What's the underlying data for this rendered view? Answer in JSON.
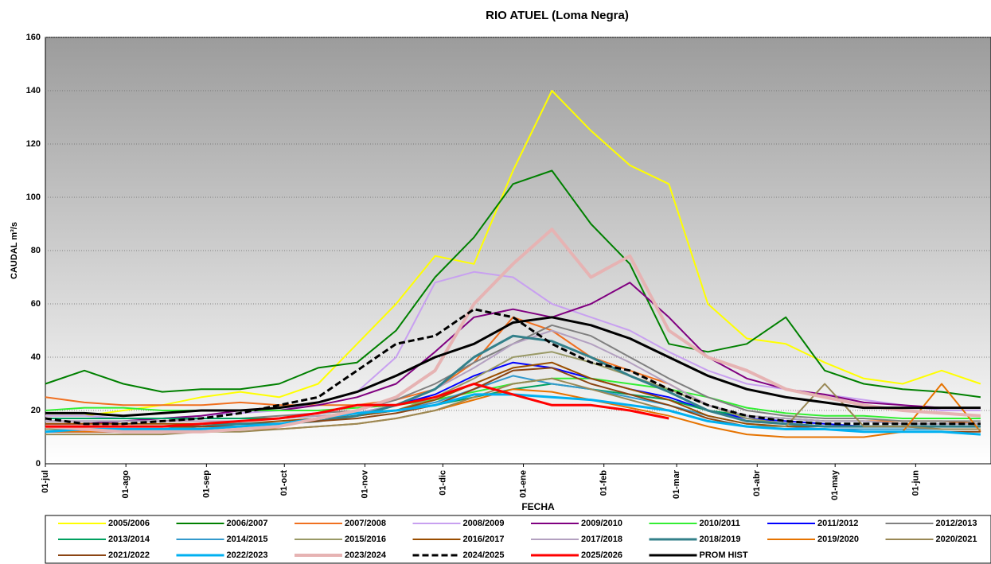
{
  "chart_data": {
    "type": "line",
    "title": "RIO ATUEL (Loma Negra)",
    "x_label": "FECHA",
    "y_label": "CAUDAL m³/s",
    "x": [
      0,
      15,
      30,
      45,
      60,
      75,
      90,
      105,
      120,
      135,
      150,
      165,
      180,
      195,
      210,
      225,
      240,
      255,
      270,
      285,
      300,
      315,
      330,
      345,
      360
    ],
    "xlim": [
      0,
      364
    ],
    "xticks": [
      {
        "value": 0,
        "label": "01-jul"
      },
      {
        "value": 31,
        "label": "01-ago"
      },
      {
        "value": 62,
        "label": "01-sep"
      },
      {
        "value": 92,
        "label": "01-oct"
      },
      {
        "value": 123,
        "label": "01-nov"
      },
      {
        "value": 153,
        "label": "01-dic"
      },
      {
        "value": 184,
        "label": "01-ene"
      },
      {
        "value": 215,
        "label": "01-feb"
      },
      {
        "value": 243,
        "label": "01-mar"
      },
      {
        "value": 274,
        "label": "01-abr"
      },
      {
        "value": 304,
        "label": "01-may"
      },
      {
        "value": 335,
        "label": "01-jun"
      }
    ],
    "ylim": [
      0,
      160
    ],
    "yticks": [
      0,
      20,
      40,
      60,
      80,
      100,
      120,
      140,
      160
    ],
    "grid": true,
    "series": [
      {
        "name": "2005/2006",
        "color": "#ffff00",
        "width": 2,
        "values": [
          18,
          18,
          20,
          22,
          25,
          27,
          25,
          30,
          45,
          60,
          78,
          75,
          110,
          140,
          125,
          112,
          105,
          60,
          47,
          45,
          38,
          32,
          30,
          35,
          30
        ]
      },
      {
        "name": "2006/2007",
        "color": "#008000",
        "width": 2,
        "values": [
          30,
          35,
          30,
          27,
          28,
          28,
          30,
          36,
          38,
          50,
          70,
          85,
          105,
          110,
          90,
          75,
          45,
          42,
          45,
          55,
          35,
          30,
          28,
          27,
          25
        ]
      },
      {
        "name": "2007/2008",
        "color": "#f07020",
        "width": 2,
        "values": [
          25,
          23,
          22,
          22,
          22,
          23,
          22,
          22,
          22,
          24,
          28,
          38,
          55,
          50,
          40,
          35,
          30,
          22,
          18,
          17,
          16,
          16,
          16,
          16,
          15
        ]
      },
      {
        "name": "2008/2009",
        "color": "#c8a0f0",
        "width": 2,
        "values": [
          18,
          18,
          17,
          17,
          18,
          19,
          20,
          23,
          27,
          40,
          68,
          72,
          70,
          60,
          55,
          50,
          42,
          35,
          30,
          28,
          26,
          24,
          22,
          20,
          20
        ]
      },
      {
        "name": "2009/2010",
        "color": "#800080",
        "width": 2,
        "values": [
          15,
          15,
          16,
          17,
          18,
          20,
          20,
          22,
          25,
          30,
          42,
          55,
          58,
          55,
          60,
          68,
          55,
          40,
          32,
          28,
          26,
          23,
          22,
          21,
          21
        ]
      },
      {
        "name": "2010/2011",
        "color": "#33ee33",
        "width": 2,
        "values": [
          20,
          21,
          21,
          20,
          20,
          20,
          20,
          20,
          21,
          22,
          24,
          27,
          30,
          32,
          32,
          30,
          28,
          25,
          21,
          19,
          18,
          18,
          17,
          17,
          17
        ]
      },
      {
        "name": "2011/2012",
        "color": "#0000ff",
        "width": 2,
        "values": [
          12,
          12,
          12,
          13,
          14,
          15,
          15,
          17,
          19,
          22,
          26,
          33,
          38,
          36,
          32,
          28,
          25,
          20,
          17,
          16,
          15,
          14,
          14,
          14,
          14
        ]
      },
      {
        "name": "2012/2013",
        "color": "#808080",
        "width": 2,
        "values": [
          16,
          16,
          16,
          16,
          17,
          17,
          18,
          19,
          20,
          24,
          30,
          38,
          45,
          52,
          48,
          40,
          32,
          25,
          20,
          18,
          17,
          17,
          16,
          16,
          16
        ]
      },
      {
        "name": "2013/2014",
        "color": "#00a060",
        "width": 2,
        "values": [
          17,
          17,
          17,
          17,
          17,
          17,
          17,
          18,
          19,
          20,
          22,
          25,
          28,
          30,
          28,
          26,
          24,
          20,
          18,
          17,
          16,
          16,
          15,
          15,
          15
        ]
      },
      {
        "name": "2014/2015",
        "color": "#3399cc",
        "width": 2,
        "values": [
          14,
          14,
          14,
          14,
          14,
          15,
          15,
          16,
          18,
          20,
          23,
          28,
          33,
          30,
          28,
          25,
          22,
          18,
          15,
          14,
          13,
          13,
          13,
          13,
          13
        ]
      },
      {
        "name": "2015/2016",
        "color": "#999966",
        "width": 2,
        "values": [
          13,
          13,
          13,
          13,
          14,
          14,
          15,
          16,
          18,
          20,
          25,
          32,
          40,
          42,
          38,
          33,
          28,
          22,
          17,
          15,
          14,
          14,
          14,
          13,
          13
        ]
      },
      {
        "name": "2016/2017",
        "color": "#994d00",
        "width": 2,
        "values": [
          15,
          15,
          15,
          15,
          15,
          15,
          16,
          17,
          18,
          20,
          24,
          30,
          36,
          38,
          32,
          28,
          24,
          18,
          15,
          14,
          14,
          14,
          14,
          14,
          14
        ]
      },
      {
        "name": "2017/2018",
        "color": "#b3a0c0",
        "width": 2,
        "values": [
          16,
          16,
          16,
          16,
          16,
          16,
          17,
          18,
          19,
          22,
          28,
          36,
          45,
          50,
          45,
          38,
          30,
          22,
          18,
          17,
          16,
          16,
          15,
          15,
          15
        ]
      },
      {
        "name": "2018/2019",
        "color": "#33808a",
        "width": 3,
        "values": [
          14,
          14,
          14,
          14,
          14,
          15,
          15,
          16,
          18,
          22,
          28,
          40,
          48,
          46,
          40,
          33,
          27,
          20,
          16,
          15,
          14,
          14,
          14,
          14,
          14
        ]
      },
      {
        "name": "2019/2020",
        "color": "#e67300",
        "width": 2,
        "values": [
          12,
          12,
          12,
          12,
          12,
          13,
          13,
          14,
          15,
          17,
          20,
          24,
          28,
          27,
          24,
          21,
          18,
          14,
          11,
          10,
          10,
          10,
          12,
          30,
          12
        ]
      },
      {
        "name": "2020/2021",
        "color": "#998855",
        "width": 2,
        "values": [
          11,
          11,
          11,
          11,
          12,
          12,
          13,
          14,
          15,
          17,
          20,
          25,
          30,
          32,
          28,
          24,
          20,
          16,
          14,
          14,
          30,
          14,
          14,
          13,
          13
        ]
      },
      {
        "name": "2021/2022",
        "color": "#8b4513",
        "width": 2,
        "values": [
          14,
          14,
          14,
          14,
          14,
          14,
          15,
          16,
          17,
          19,
          22,
          28,
          35,
          36,
          30,
          26,
          22,
          17,
          14,
          13,
          13,
          12,
          12,
          12,
          12
        ]
      },
      {
        "name": "2022/2023",
        "color": "#00b0f0",
        "width": 3,
        "values": [
          12,
          13,
          13,
          13,
          13,
          14,
          15,
          17,
          19,
          20,
          22,
          26,
          26,
          25,
          24,
          22,
          20,
          16,
          14,
          13,
          13,
          12,
          12,
          12,
          11
        ]
      },
      {
        "name": "2023/2024",
        "color": "#e6b3b3",
        "width": 4,
        "values": [
          14,
          13,
          12,
          12,
          12,
          13,
          14,
          17,
          20,
          25,
          35,
          60,
          75,
          88,
          70,
          78,
          50,
          40,
          35,
          28,
          25,
          22,
          20,
          19,
          18
        ]
      },
      {
        "name": "2024/2025",
        "color": "#000000",
        "width": 3,
        "dashed": true,
        "values": [
          17,
          15,
          15,
          16,
          17,
          19,
          22,
          25,
          35,
          45,
          48,
          58,
          55,
          45,
          38,
          35,
          28,
          22,
          18,
          16,
          15,
          15,
          15,
          15,
          15
        ]
      },
      {
        "name": "2025/2026",
        "color": "#ff0000",
        "width": 3,
        "values": [
          14,
          14,
          14,
          14,
          15,
          16,
          17,
          19,
          22,
          22,
          25,
          30,
          26,
          22,
          22,
          20,
          17,
          null,
          null,
          null,
          null,
          null,
          null,
          null,
          null
        ]
      },
      {
        "name": "PROM HIST",
        "color": "#000000",
        "width": 3,
        "values": [
          19,
          19,
          18,
          19,
          20,
          20,
          21,
          23,
          27,
          33,
          40,
          45,
          53,
          55,
          52,
          47,
          40,
          33,
          28,
          25,
          23,
          21,
          21,
          21,
          21
        ]
      }
    ]
  }
}
